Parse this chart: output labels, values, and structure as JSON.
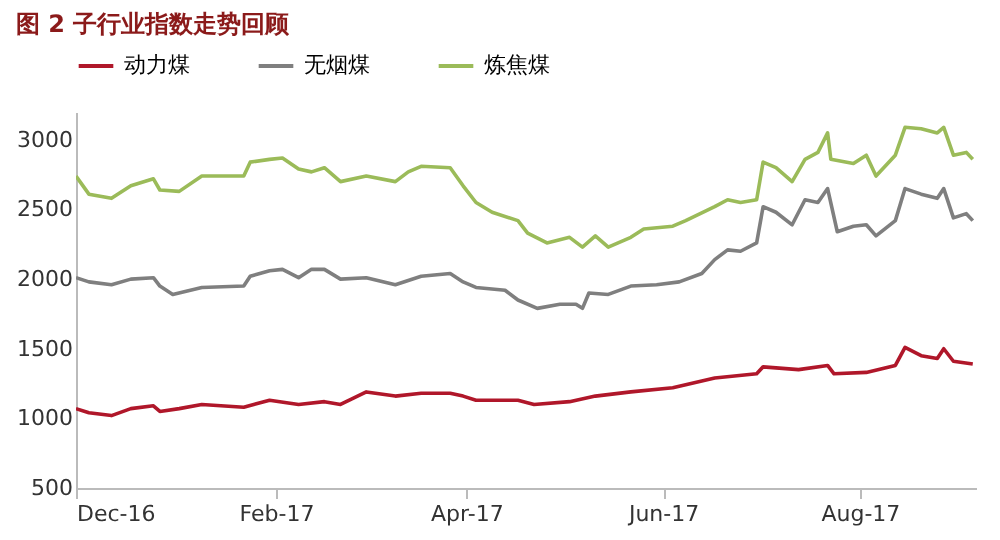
{
  "chart_data": {
    "type": "line",
    "title": "图 2 子行业指数走势回顾",
    "xlim": [
      "2016-12-01",
      "2017-09-06"
    ],
    "xticks": [
      {
        "value": "2016-12-01",
        "label": "Dec-16"
      },
      {
        "value": "2017-02-01",
        "label": "Feb-17"
      },
      {
        "value": "2017-04-01",
        "label": "Apr-17"
      },
      {
        "value": "2017-06-01",
        "label": "Jun-17"
      },
      {
        "value": "2017-08-01",
        "label": "Aug-17"
      }
    ],
    "ylim": [
      500,
      3200
    ],
    "yticks": [
      500,
      1000,
      1500,
      2000,
      2500,
      3000
    ],
    "legend": "top",
    "grid": false,
    "series": [
      {
        "name": "动力煤",
        "color": "#b0172a",
        "x": [
          "2016-12-01",
          "2016-12-05",
          "2016-12-12",
          "2016-12-18",
          "2016-12-25",
          "2016-12-27",
          "2017-01-02",
          "2017-01-09",
          "2017-01-22",
          "2017-01-30",
          "2017-02-08",
          "2017-02-16",
          "2017-02-21",
          "2017-03-01",
          "2017-03-10",
          "2017-03-18",
          "2017-03-27",
          "2017-03-31",
          "2017-04-04",
          "2017-04-17",
          "2017-04-22",
          "2017-05-03",
          "2017-05-11",
          "2017-05-22",
          "2017-06-04",
          "2017-06-17",
          "2017-06-30",
          "2017-07-02",
          "2017-07-13",
          "2017-07-22",
          "2017-07-24",
          "2017-08-03",
          "2017-08-12",
          "2017-08-15",
          "2017-08-20",
          "2017-08-25",
          "2017-08-27",
          "2017-08-30",
          "2017-09-05"
        ],
        "values": [
          1070,
          1040,
          1020,
          1070,
          1090,
          1050,
          1070,
          1100,
          1080,
          1130,
          1100,
          1120,
          1100,
          1190,
          1160,
          1180,
          1180,
          1160,
          1130,
          1130,
          1100,
          1120,
          1160,
          1190,
          1220,
          1290,
          1320,
          1370,
          1350,
          1380,
          1320,
          1330,
          1380,
          1510,
          1450,
          1430,
          1500,
          1410,
          1390
        ]
      },
      {
        "name": "无烟煤",
        "color": "#7f7f7f",
        "x": [
          "2016-12-01",
          "2016-12-05",
          "2016-12-12",
          "2016-12-18",
          "2016-12-25",
          "2016-12-27",
          "2016-12-31",
          "2017-01-09",
          "2017-01-22",
          "2017-01-24",
          "2017-01-30",
          "2017-02-03",
          "2017-02-08",
          "2017-02-12",
          "2017-02-16",
          "2017-02-21",
          "2017-03-01",
          "2017-03-10",
          "2017-03-18",
          "2017-03-27",
          "2017-03-31",
          "2017-04-04",
          "2017-04-13",
          "2017-04-17",
          "2017-04-23",
          "2017-04-30",
          "2017-05-05",
          "2017-05-07",
          "2017-05-09",
          "2017-05-15",
          "2017-05-22",
          "2017-05-30",
          "2017-06-06",
          "2017-06-13",
          "2017-06-17",
          "2017-06-21",
          "2017-06-25",
          "2017-06-30",
          "2017-07-02",
          "2017-07-06",
          "2017-07-11",
          "2017-07-15",
          "2017-07-19",
          "2017-07-22",
          "2017-07-25",
          "2017-07-30",
          "2017-08-03",
          "2017-08-06",
          "2017-08-12",
          "2017-08-15",
          "2017-08-20",
          "2017-08-25",
          "2017-08-27",
          "2017-08-30",
          "2017-09-03",
          "2017-09-05"
        ],
        "values": [
          2010,
          1980,
          1960,
          2000,
          2010,
          1950,
          1890,
          1940,
          1950,
          2020,
          2060,
          2070,
          2010,
          2070,
          2070,
          2000,
          2010,
          1960,
          2020,
          2040,
          1980,
          1940,
          1920,
          1850,
          1790,
          1820,
          1820,
          1790,
          1900,
          1890,
          1950,
          1960,
          1980,
          2040,
          2140,
          2210,
          2200,
          2260,
          2520,
          2480,
          2390,
          2570,
          2550,
          2650,
          2340,
          2380,
          2390,
          2310,
          2420,
          2650,
          2610,
          2580,
          2650,
          2440,
          2470,
          2420
        ]
      },
      {
        "name": "炼焦煤",
        "color": "#9bbb59",
        "x": [
          "2016-12-01",
          "2016-12-05",
          "2016-12-12",
          "2016-12-18",
          "2016-12-25",
          "2016-12-27",
          "2017-01-02",
          "2017-01-09",
          "2017-01-22",
          "2017-01-24",
          "2017-01-30",
          "2017-02-03",
          "2017-02-08",
          "2017-02-12",
          "2017-02-16",
          "2017-02-21",
          "2017-03-01",
          "2017-03-10",
          "2017-03-14",
          "2017-03-18",
          "2017-03-27",
          "2017-03-31",
          "2017-04-04",
          "2017-04-09",
          "2017-04-17",
          "2017-04-20",
          "2017-04-26",
          "2017-05-03",
          "2017-05-07",
          "2017-05-11",
          "2017-05-15",
          "2017-05-22",
          "2017-05-26",
          "2017-06-04",
          "2017-06-08",
          "2017-06-17",
          "2017-06-21",
          "2017-06-25",
          "2017-06-30",
          "2017-07-02",
          "2017-07-06",
          "2017-07-11",
          "2017-07-15",
          "2017-07-19",
          "2017-07-22",
          "2017-07-23",
          "2017-07-30",
          "2017-08-03",
          "2017-08-06",
          "2017-08-12",
          "2017-08-15",
          "2017-08-20",
          "2017-08-25",
          "2017-08-27",
          "2017-08-30",
          "2017-09-03",
          "2017-09-05"
        ],
        "values": [
          2740,
          2610,
          2580,
          2670,
          2720,
          2640,
          2630,
          2740,
          2740,
          2840,
          2860,
          2870,
          2790,
          2770,
          2800,
          2700,
          2740,
          2700,
          2770,
          2810,
          2800,
          2670,
          2550,
          2480,
          2420,
          2330,
          2260,
          2300,
          2230,
          2310,
          2230,
          2300,
          2360,
          2380,
          2420,
          2520,
          2570,
          2550,
          2570,
          2840,
          2800,
          2700,
          2860,
          2910,
          3050,
          2860,
          2830,
          2890,
          2740,
          2890,
          3090,
          3080,
          3050,
          3090,
          2890,
          2910,
          2860
        ]
      }
    ]
  }
}
